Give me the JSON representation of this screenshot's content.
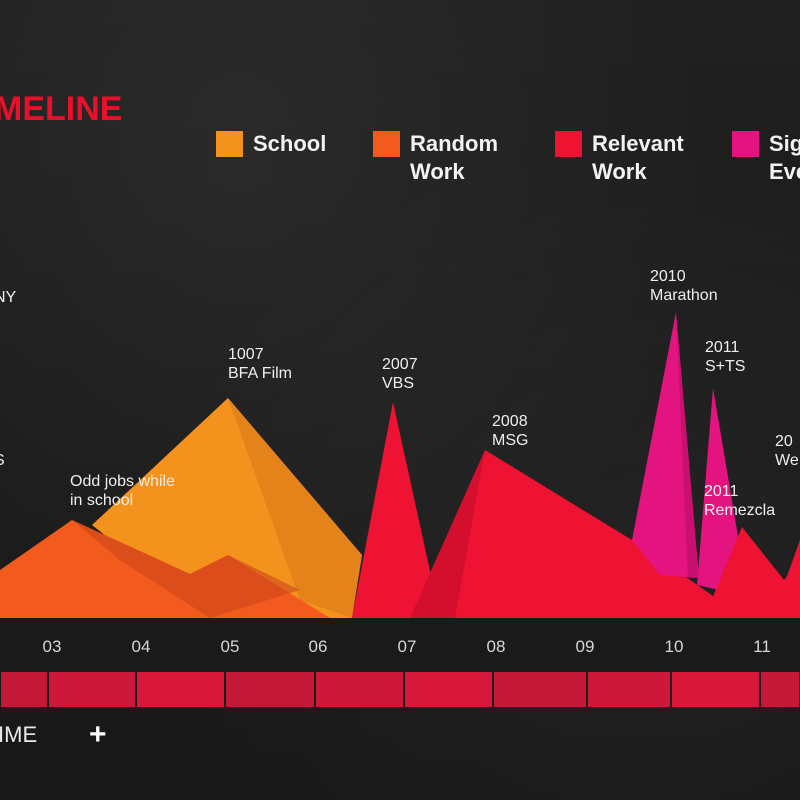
{
  "header": {
    "title": "MELINE"
  },
  "legend": [
    {
      "label": "School",
      "color": "#f3921d"
    },
    {
      "label": "Random\nWork",
      "color": "#f25a1e"
    },
    {
      "label": "Relevant\nWork",
      "color": "#ee1233"
    },
    {
      "label": "Sig\nEve",
      "color": "#e3137f"
    }
  ],
  "chart_data": {
    "type": "area",
    "categories": [
      "03",
      "04",
      "05",
      "06",
      "07",
      "08",
      "09",
      "10",
      "11"
    ],
    "annotations": [
      {
        "text": [
          "NY"
        ],
        "x": "02",
        "category": ""
      },
      {
        "text": [
          "S"
        ],
        "x": "02",
        "category": ""
      },
      {
        "text": [
          "Odd jobs while",
          "in school"
        ],
        "x": "03",
        "category": "Random Work"
      },
      {
        "text": [
          "1007",
          "BFA Film"
        ],
        "x": "05",
        "category": "School"
      },
      {
        "text": [
          "2007",
          "VBS"
        ],
        "x": "07",
        "category": "Relevant Work"
      },
      {
        "text": [
          "2008",
          "MSG"
        ],
        "x": "08",
        "category": "Relevant Work"
      },
      {
        "text": [
          "2010",
          "Marathon"
        ],
        "x": "10",
        "category": "Significant Events"
      },
      {
        "text": [
          "2011",
          "S+TS"
        ],
        "x": "11",
        "category": "Significant Events"
      },
      {
        "text": [
          "2011",
          "Remezcla"
        ],
        "x": "11",
        "category": "Relevant Work"
      },
      {
        "text": [
          "20",
          "We"
        ],
        "x": "12",
        "category": "Relevant Work"
      }
    ]
  },
  "footer": {
    "time_label": "IME",
    "plus_label": "+"
  },
  "colors": {
    "background": "#1c1c1c",
    "timeline_bar": "#e0183c",
    "school": "#f3921d",
    "random_work": "#f25a1e",
    "relevant_work": "#ee1233",
    "significant_events": "#e3137f"
  }
}
